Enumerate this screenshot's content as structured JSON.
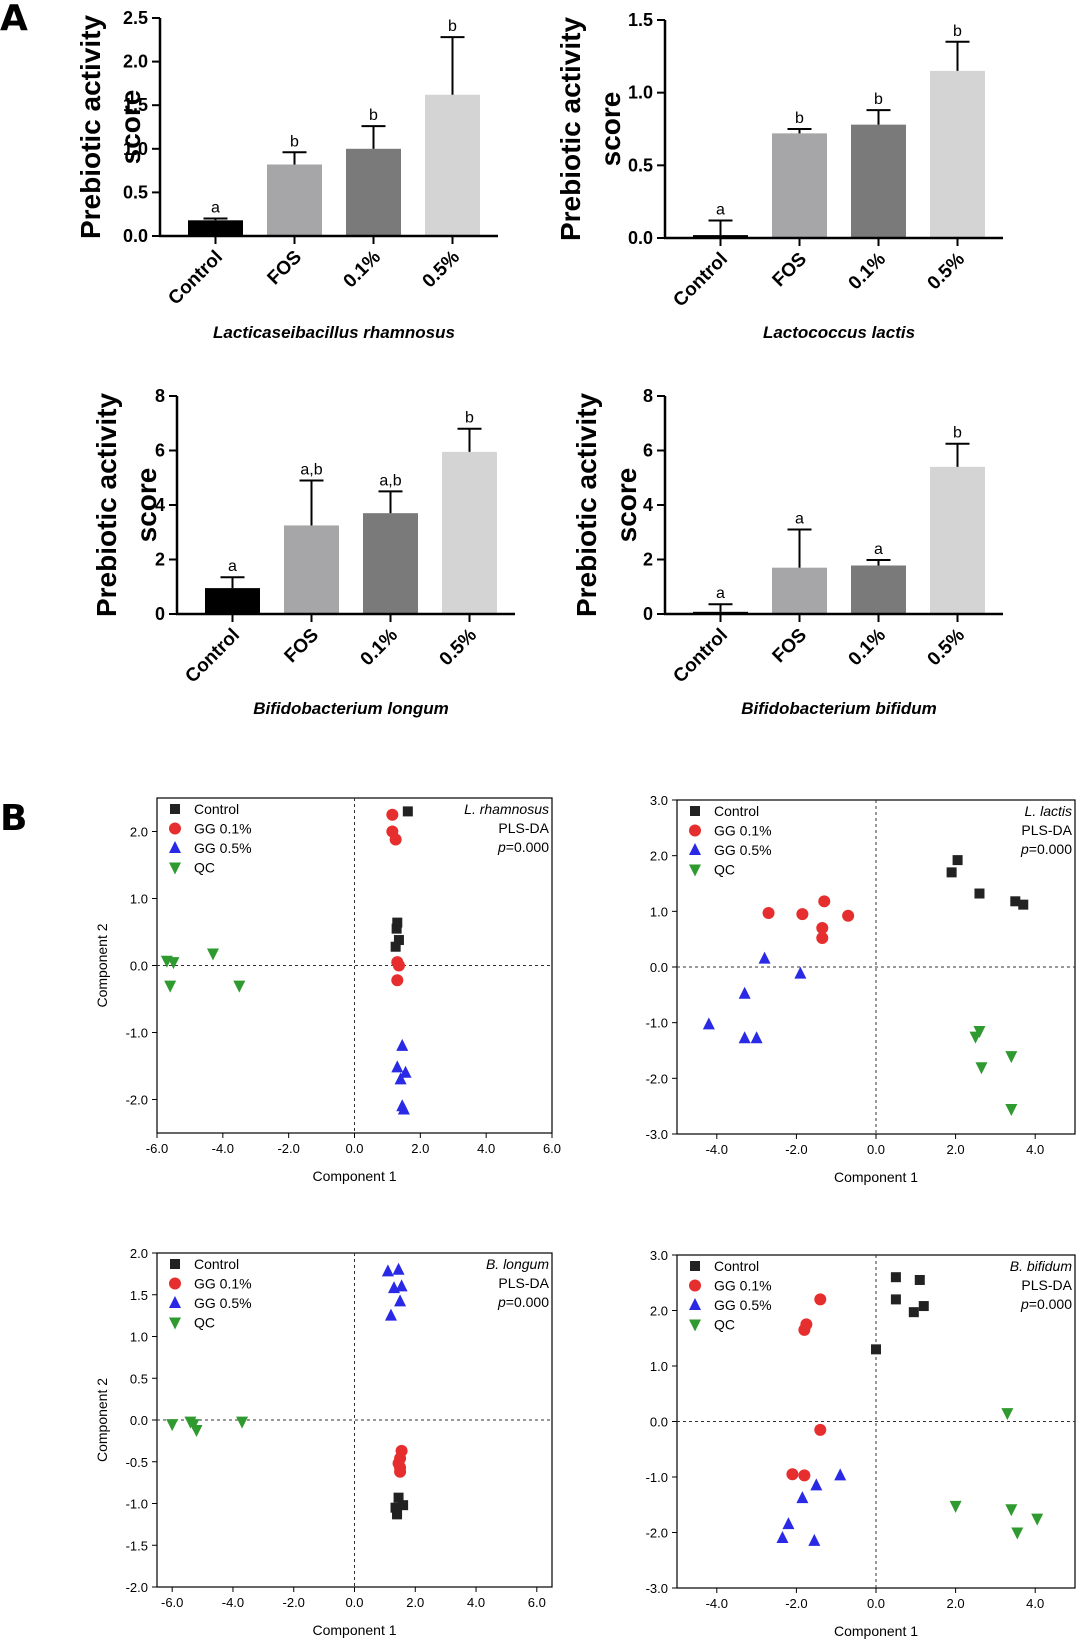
{
  "panels": {
    "a_label": "A",
    "b_label": "B"
  },
  "colors": {
    "control_bar": "#000000",
    "fos_bar": "#a6a6a8",
    "pct01_bar": "#7a7a7a",
    "pct05_bar": "#d4d4d4",
    "control_point": "#222222",
    "gg01_point": "#e62e2e",
    "gg05_point": "#2a2ae6",
    "qc_point": "#2f9a2f"
  },
  "chart_data": [
    {
      "type": "bar",
      "panel": "A",
      "caption": "Lacticaseibacillus rhamnosus",
      "ylabel_line1": "Prebiotic activity",
      "ylabel_line2": "score",
      "categories": [
        "Control",
        "FOS",
        "0.1%",
        "0.5%"
      ],
      "values": [
        0.18,
        0.82,
        1.0,
        1.62
      ],
      "errors": [
        0.02,
        0.14,
        0.26,
        0.66
      ],
      "significance": [
        "a",
        "b",
        "b",
        "b"
      ],
      "ylim": [
        0,
        2.5
      ],
      "yticks": [
        "0.0",
        "0.5",
        "1.0",
        "1.5",
        "2.0",
        "2.5"
      ]
    },
    {
      "type": "bar",
      "panel": "A",
      "caption": "Lactococcus lactis",
      "ylabel_line1": "Prebiotic activity",
      "ylabel_line2": "score",
      "categories": [
        "Control",
        "FOS",
        "0.1%",
        "0.5%"
      ],
      "values": [
        0.02,
        0.72,
        0.78,
        1.15
      ],
      "errors": [
        0.1,
        0.03,
        0.1,
        0.2
      ],
      "significance": [
        "a",
        "b",
        "b",
        "b"
      ],
      "ylim": [
        0,
        1.5
      ],
      "yticks": [
        "0.0",
        "0.5",
        "1.0",
        "1.5"
      ]
    },
    {
      "type": "bar",
      "panel": "A",
      "caption": "Bifidobacterium longum",
      "ylabel_line1": "Prebiotic activity",
      "ylabel_line2": "score",
      "categories": [
        "Control",
        "FOS",
        "0.1%",
        "0.5%"
      ],
      "values": [
        0.95,
        3.25,
        3.7,
        5.95
      ],
      "errors": [
        0.4,
        1.65,
        0.8,
        0.85
      ],
      "significance": [
        "a",
        "a,b",
        "a,b",
        "b"
      ],
      "ylim": [
        0,
        8
      ],
      "yticks": [
        "0",
        "2",
        "4",
        "6",
        "8"
      ]
    },
    {
      "type": "bar",
      "panel": "A",
      "caption": "Bifidobacterium bifidum",
      "ylabel_line1": "Prebiotic activity",
      "ylabel_line2": "score",
      "categories": [
        "Control",
        "FOS",
        "0.1%",
        "0.5%"
      ],
      "values": [
        0.08,
        1.7,
        1.78,
        5.4
      ],
      "errors": [
        0.28,
        1.4,
        0.2,
        0.85
      ],
      "significance": [
        "a",
        "a",
        "a",
        "b"
      ],
      "ylim": [
        0,
        8
      ],
      "yticks": [
        "0",
        "2",
        "4",
        "6",
        "8"
      ]
    },
    {
      "type": "scatter",
      "panel": "B",
      "organism": "L. rhamnosus",
      "method": "PLS-DA",
      "pvalue_prefix": "p",
      "pvalue_rest": "=0.000",
      "xlabel": "Component 1",
      "ylabel": "Component 2",
      "xlim": [
        -6,
        6
      ],
      "ylim": [
        -2.5,
        2.5
      ],
      "xticks": [
        -6,
        -4,
        -2,
        0,
        2,
        4,
        6
      ],
      "xtick_labels": [
        "-6.0",
        "-4.0",
        "-2.0",
        "0.0",
        "2.0",
        "4.0",
        "6.0"
      ],
      "yticks": [
        -2,
        -1,
        0,
        1,
        2
      ],
      "ytick_labels": [
        "-2.0",
        "-1.0",
        "0.0",
        "1.0",
        "2.0"
      ],
      "series": [
        {
          "name": "Control",
          "marker": "square",
          "points": [
            [
              1.62,
              2.3
            ],
            [
              1.3,
              0.64
            ],
            [
              1.28,
              0.55
            ],
            [
              1.35,
              0.38
            ],
            [
              1.25,
              0.28
            ]
          ]
        },
        {
          "name": "GG 0.1%",
          "marker": "circle",
          "points": [
            [
              1.15,
              2.25
            ],
            [
              1.15,
              2.0
            ],
            [
              1.25,
              1.88
            ],
            [
              1.3,
              0.05
            ],
            [
              1.35,
              0.0
            ],
            [
              1.3,
              -0.22
            ]
          ]
        },
        {
          "name": "GG 0.5%",
          "marker": "triangle-up",
          "points": [
            [
              1.45,
              -1.2
            ],
            [
              1.3,
              -1.52
            ],
            [
              1.55,
              -1.6
            ],
            [
              1.4,
              -1.7
            ],
            [
              1.45,
              -2.1
            ],
            [
              1.5,
              -2.15
            ]
          ]
        },
        {
          "name": "QC",
          "marker": "triangle-down",
          "points": [
            [
              -5.7,
              0.07
            ],
            [
              -5.5,
              0.05
            ],
            [
              -5.6,
              -0.3
            ],
            [
              -4.3,
              0.18
            ],
            [
              -3.5,
              -0.3
            ]
          ]
        }
      ]
    },
    {
      "type": "scatter",
      "panel": "B",
      "organism": "L. lactis",
      "method": "PLS-DA",
      "pvalue_prefix": "p",
      "pvalue_rest": "=0.000",
      "xlabel": "Component 1",
      "ylabel": "",
      "xlim": [
        -5,
        5
      ],
      "ylim": [
        -3,
        3
      ],
      "xticks": [
        -4,
        -2,
        0,
        2,
        4
      ],
      "xtick_labels": [
        "-4.0",
        "-2.0",
        "0.0",
        "2.0",
        "4.0"
      ],
      "yticks": [
        -3,
        -2,
        -1,
        0,
        1,
        2,
        3
      ],
      "ytick_labels": [
        "-3.0",
        "-2.0",
        "-1.0",
        "0.0",
        "1.0",
        "2.0",
        "3.0"
      ],
      "series": [
        {
          "name": "Control",
          "marker": "square",
          "points": [
            [
              1.9,
              1.7
            ],
            [
              2.05,
              1.92
            ],
            [
              2.6,
              1.32
            ],
            [
              3.5,
              1.18
            ],
            [
              3.7,
              1.12
            ]
          ]
        },
        {
          "name": "GG 0.1%",
          "marker": "circle",
          "points": [
            [
              -2.7,
              0.97
            ],
            [
              -1.85,
              0.95
            ],
            [
              -1.3,
              1.18
            ],
            [
              -1.35,
              0.7
            ],
            [
              -1.35,
              0.52
            ],
            [
              -0.7,
              0.92
            ]
          ]
        },
        {
          "name": "GG 0.5%",
          "marker": "triangle-up",
          "points": [
            [
              -2.8,
              0.15
            ],
            [
              -1.9,
              -0.12
            ],
            [
              -3.3,
              -0.48
            ],
            [
              -4.2,
              -1.03
            ],
            [
              -3.3,
              -1.28
            ],
            [
              -3.0,
              -1.28
            ]
          ]
        },
        {
          "name": "QC",
          "marker": "triangle-down",
          "points": [
            [
              2.6,
              -1.15
            ],
            [
              2.5,
              -1.25
            ],
            [
              2.65,
              -1.8
            ],
            [
              3.4,
              -1.6
            ],
            [
              3.4,
              -2.55
            ]
          ]
        }
      ]
    },
    {
      "type": "scatter",
      "panel": "B",
      "organism": "B. longum",
      "method": "PLS-DA",
      "pvalue_prefix": "p",
      "pvalue_rest": "=0.000",
      "xlabel": "Component 1",
      "ylabel": "Component 2",
      "xlim": [
        -6.5,
        6.5
      ],
      "ylim": [
        -2,
        2
      ],
      "xticks": [
        -6,
        -4,
        -2,
        0,
        2,
        4,
        6
      ],
      "xtick_labels": [
        "-6.0",
        "-4.0",
        "-2.0",
        "0.0",
        "2.0",
        "4.0",
        "6.0"
      ],
      "yticks": [
        -2,
        -1.5,
        -1,
        -0.5,
        0,
        0.5,
        1,
        1.5,
        2
      ],
      "ytick_labels": [
        "-2.0",
        "-1.5",
        "-1.0",
        "-0.5",
        "0.0",
        "0.5",
        "1.0",
        "1.5",
        "2.0"
      ],
      "series": [
        {
          "name": "Control",
          "marker": "square",
          "points": [
            [
              1.45,
              -0.93
            ],
            [
              1.6,
              -1.02
            ],
            [
              1.35,
              -1.05
            ],
            [
              1.4,
              -1.1
            ],
            [
              1.4,
              -1.13
            ]
          ]
        },
        {
          "name": "GG 0.1%",
          "marker": "circle",
          "points": [
            [
              1.55,
              -0.37
            ],
            [
              1.5,
              -0.46
            ],
            [
              1.45,
              -0.52
            ],
            [
              1.5,
              -0.57
            ],
            [
              1.5,
              -0.62
            ]
          ]
        },
        {
          "name": "GG 0.5%",
          "marker": "triangle-up",
          "points": [
            [
              1.1,
              1.78
            ],
            [
              1.45,
              1.8
            ],
            [
              1.3,
              1.58
            ],
            [
              1.55,
              1.6
            ],
            [
              1.5,
              1.42
            ],
            [
              1.2,
              1.25
            ]
          ]
        },
        {
          "name": "QC",
          "marker": "triangle-down",
          "points": [
            [
              -6.0,
              -0.05
            ],
            [
              -5.4,
              -0.02
            ],
            [
              -5.3,
              -0.05
            ],
            [
              -5.2,
              -0.12
            ],
            [
              -3.7,
              -0.02
            ]
          ]
        }
      ]
    },
    {
      "type": "scatter",
      "panel": "B",
      "organism": "B. bifidum",
      "method": "PLS-DA",
      "pvalue_prefix": "p",
      "pvalue_rest": "=0.000",
      "xlabel": "Component 1",
      "ylabel": "",
      "xlim": [
        -5,
        5
      ],
      "ylim": [
        -3,
        3
      ],
      "xticks": [
        -4,
        -2,
        0,
        2,
        4
      ],
      "xtick_labels": [
        "-4.0",
        "-2.0",
        "0.0",
        "2.0",
        "4.0"
      ],
      "yticks": [
        -3,
        -2,
        -1,
        0,
        1,
        2,
        3
      ],
      "ytick_labels": [
        "-3.0",
        "-2.0",
        "-1.0",
        "0.0",
        "1.0",
        "2.0",
        "3.0"
      ],
      "series": [
        {
          "name": "Control",
          "marker": "square",
          "points": [
            [
              0.5,
              2.6
            ],
            [
              0.5,
              2.2
            ],
            [
              1.1,
              2.55
            ],
            [
              0.95,
              1.97
            ],
            [
              1.2,
              2.08
            ],
            [
              0.0,
              1.3
            ]
          ]
        },
        {
          "name": "GG 0.1%",
          "marker": "circle",
          "points": [
            [
              -1.4,
              2.2
            ],
            [
              -1.75,
              1.75
            ],
            [
              -1.8,
              1.65
            ],
            [
              -1.4,
              -0.15
            ],
            [
              -2.1,
              -0.95
            ],
            [
              -1.8,
              -0.97
            ]
          ]
        },
        {
          "name": "GG 0.5%",
          "marker": "triangle-up",
          "points": [
            [
              -0.9,
              -0.97
            ],
            [
              -1.5,
              -1.15
            ],
            [
              -1.85,
              -1.38
            ],
            [
              -2.2,
              -1.85
            ],
            [
              -2.35,
              -2.1
            ],
            [
              -1.55,
              -2.15
            ]
          ]
        },
        {
          "name": "QC",
          "marker": "triangle-down",
          "points": [
            [
              3.3,
              0.15
            ],
            [
              2.0,
              -1.52
            ],
            [
              3.4,
              -1.58
            ],
            [
              3.55,
              -2.0
            ],
            [
              4.05,
              -1.75
            ]
          ]
        }
      ]
    }
  ]
}
